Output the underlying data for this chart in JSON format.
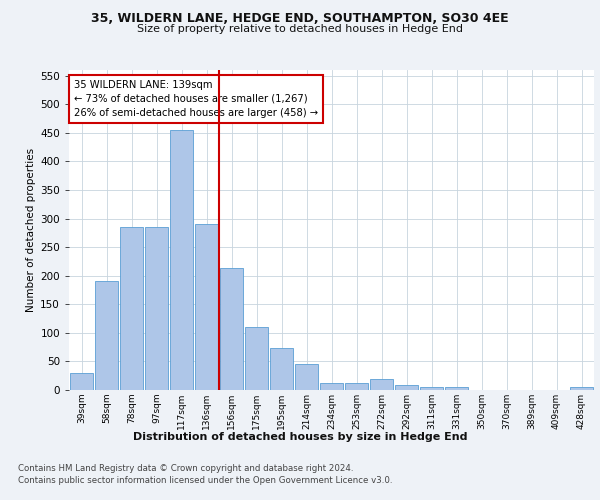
{
  "title": "35, WILDERN LANE, HEDGE END, SOUTHAMPTON, SO30 4EE",
  "subtitle": "Size of property relative to detached houses in Hedge End",
  "xlabel": "Distribution of detached houses by size in Hedge End",
  "ylabel": "Number of detached properties",
  "categories": [
    "39sqm",
    "58sqm",
    "78sqm",
    "97sqm",
    "117sqm",
    "136sqm",
    "156sqm",
    "175sqm",
    "195sqm",
    "214sqm",
    "234sqm",
    "253sqm",
    "272sqm",
    "292sqm",
    "311sqm",
    "331sqm",
    "350sqm",
    "370sqm",
    "389sqm",
    "409sqm",
    "428sqm"
  ],
  "values": [
    30,
    190,
    285,
    285,
    455,
    290,
    213,
    110,
    73,
    46,
    12,
    12,
    20,
    8,
    6,
    5,
    0,
    0,
    0,
    0,
    5
  ],
  "bar_color": "#aec6e8",
  "bar_edge_color": "#5a9fd4",
  "vline_x": 5.5,
  "vline_color": "#cc0000",
  "annotation_text": "35 WILDERN LANE: 139sqm\n← 73% of detached houses are smaller (1,267)\n26% of semi-detached houses are larger (458) →",
  "annotation_box_color": "#ffffff",
  "annotation_box_edge": "#cc0000",
  "ylim": [
    0,
    560
  ],
  "yticks": [
    0,
    50,
    100,
    150,
    200,
    250,
    300,
    350,
    400,
    450,
    500,
    550
  ],
  "footer1": "Contains HM Land Registry data © Crown copyright and database right 2024.",
  "footer2": "Contains public sector information licensed under the Open Government Licence v3.0.",
  "bg_color": "#eef2f7",
  "plot_bg_color": "#ffffff",
  "grid_color": "#c8d4de"
}
